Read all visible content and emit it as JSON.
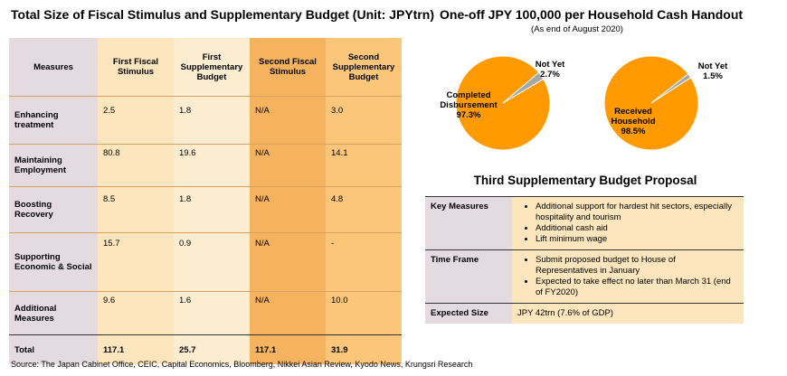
{
  "left_title": "Total Size of Fiscal Stimulus and Supplementary Budget (Unit: JPYtrn)",
  "fiscal_table": {
    "headers": [
      "Measures",
      "First Fiscal Stimulus",
      "First Supplementary Budget",
      "Second Fiscal Stimulus",
      "Second Supplementary Budget"
    ],
    "rows": [
      {
        "measure": "Enhancing treatment",
        "values": [
          "2.5",
          "1.8",
          "N/A",
          "3.0"
        ]
      },
      {
        "measure": "Maintaining Employment",
        "values": [
          "80.8",
          "19.6",
          "N/A",
          "14.1"
        ]
      },
      {
        "measure": "Boosting Recovery",
        "values": [
          "8.5",
          "1.8",
          "N/A",
          "4.8"
        ]
      },
      {
        "measure": "Supporting Economic & Social",
        "values": [
          "15.7",
          "0.9",
          "N/A",
          "-"
        ]
      },
      {
        "measure": "Additional Measures",
        "values": [
          "9.6",
          "1.6",
          "N/A",
          "10.0"
        ]
      }
    ],
    "total": {
      "measure": "Total",
      "values": [
        "117.1",
        "25.7",
        "117.1",
        "31.9"
      ]
    }
  },
  "right_title": "One-off JPY 100,000 per Household Cash Handout",
  "right_subtitle": "(As end of August 2020)",
  "chart_data": [
    {
      "type": "pie",
      "slices": [
        {
          "label": "Completed Disbursement",
          "value": 97.3,
          "value_label": "97.3%",
          "color": "#ff9a00"
        },
        {
          "label": "Not Yet",
          "value": 2.7,
          "value_label": "2.7%",
          "color": "#a6a6a6"
        }
      ]
    },
    {
      "type": "pie",
      "slices": [
        {
          "label": "Received Household",
          "value": 98.5,
          "value_label": "98.5%",
          "color": "#ff9a00"
        },
        {
          "label": "Not Yet",
          "value": 1.5,
          "value_label": "1.5%",
          "color": "#a6a6a6"
        }
      ]
    }
  ],
  "budget_title": "Third Supplementary Budget Proposal",
  "budget_table": {
    "key_measures": {
      "label": "Key Measures",
      "items": [
        "Additional support for hardest hit sectors, especially hospitality and tourism",
        "Additional cash aid",
        "Lift minimum wage"
      ]
    },
    "time_frame": {
      "label": "Time Frame",
      "items": [
        "Submit proposed budget to House of Representatives in January",
        "Expected to take effect no later than March 31 (end of FY2020)"
      ]
    },
    "expected_size": {
      "label": "Expected Size",
      "value": "JPY 42trn (7.6% of GDP)"
    }
  },
  "source": "Source: The Japan Cabinet Office, CEIC, Capital Economics, Bloomberg, Nikkei Asian Review, Kyodo News, Krungsri Research"
}
